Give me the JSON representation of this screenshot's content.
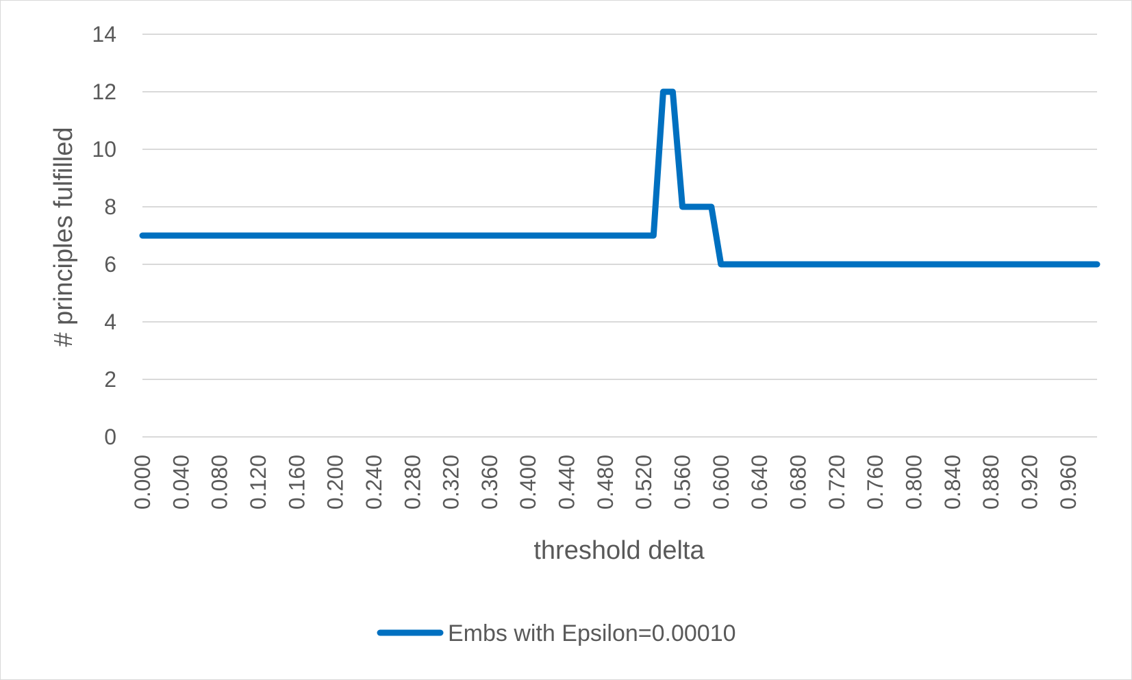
{
  "chart_data": {
    "type": "line",
    "title": "",
    "xlabel": "threshold delta",
    "ylabel": "# principles fulfilled",
    "ylim": [
      0,
      14
    ],
    "yticks": [
      0,
      2,
      4,
      6,
      8,
      10,
      12,
      14
    ],
    "xlim": [
      0.0,
      0.99
    ],
    "xtick_labels": [
      "0.000",
      "0.040",
      "0.080",
      "0.120",
      "0.160",
      "0.200",
      "0.240",
      "0.280",
      "0.320",
      "0.360",
      "0.400",
      "0.440",
      "0.480",
      "0.520",
      "0.560",
      "0.600",
      "0.640",
      "0.680",
      "0.720",
      "0.760",
      "0.800",
      "0.840",
      "0.880",
      "0.920",
      "0.960"
    ],
    "grid": true,
    "legend_position": "bottom",
    "series": [
      {
        "name": "Embs with Epsilon=0.00010",
        "color": "#0070c0",
        "x": [
          0.0,
          0.53,
          0.54,
          0.55,
          0.56,
          0.59,
          0.6,
          0.99
        ],
        "y": [
          7,
          7,
          12,
          12,
          8,
          8,
          6,
          6
        ]
      }
    ]
  }
}
